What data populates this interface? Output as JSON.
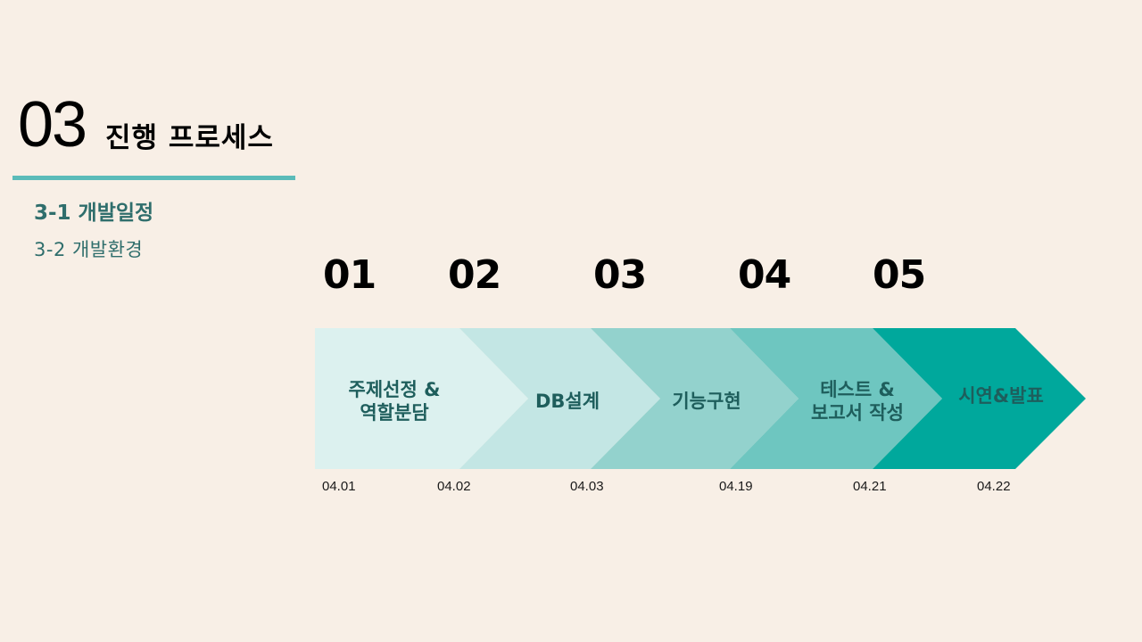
{
  "header": {
    "section_number": "03",
    "section_title": "진행 프로세스"
  },
  "sub_nav": {
    "items": [
      {
        "label": "3-1 개발일정",
        "active": true
      },
      {
        "label": "3-2  개발환경",
        "active": false
      }
    ]
  },
  "timeline": {
    "steps": [
      {
        "number": "01",
        "label_lines": [
          "주제선정 &",
          "역할분담"
        ],
        "date": "04.01",
        "color": "#dcf1ef"
      },
      {
        "number": "02",
        "label_lines": [
          "DB설계"
        ],
        "date": "04.02",
        "color": "#c3e6e4"
      },
      {
        "number": "03",
        "label_lines": [
          "기능구현"
        ],
        "date": "04.03",
        "color": "#93d2cd"
      },
      {
        "number": "04",
        "label_lines": [
          "테스트 &",
          "보고서 작성"
        ],
        "date": "04.19",
        "color": "#6ec6c0"
      },
      {
        "number": "05",
        "label_lines": [
          "시연&발표"
        ],
        "date": "04.21",
        "color": "#00a89c"
      }
    ],
    "end_date": "04.22"
  },
  "colors": {
    "background": "#f8efe6",
    "accent_rule": "#5bbbb9",
    "sub_text": "#2f6e6c",
    "step_text": "#1e5e5c"
  }
}
